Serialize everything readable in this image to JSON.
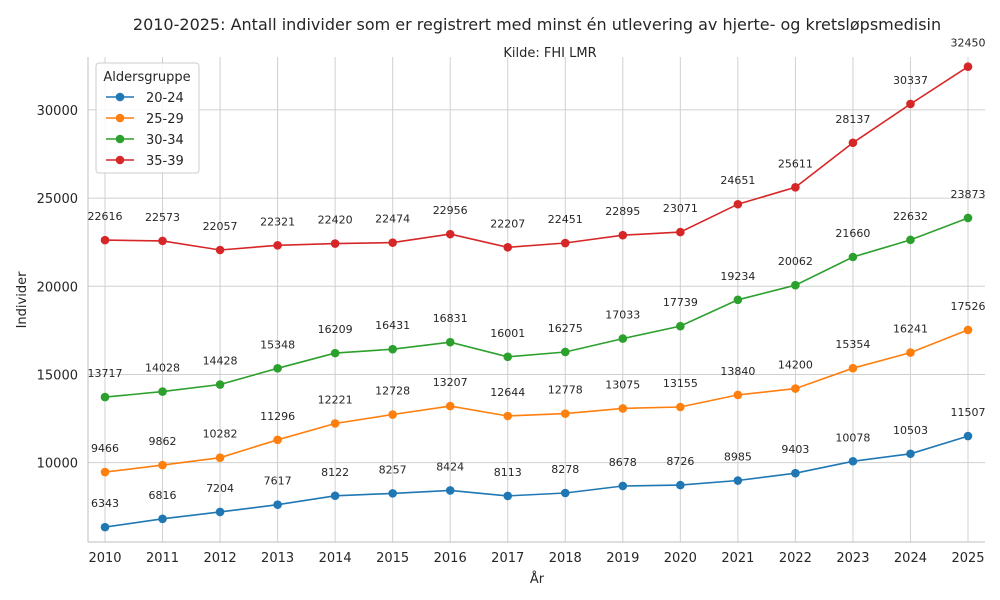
{
  "chart_data": {
    "type": "line",
    "title": "2010-2025: Antall individer som er registrert med minst én utlevering av hjerte- og kretsløpsmedisin",
    "subtitle": "Kilde: FHI LMR",
    "xlabel": "År",
    "ylabel": "Individer",
    "x": [
      2010,
      2011,
      2012,
      2013,
      2014,
      2015,
      2016,
      2017,
      2018,
      2019,
      2020,
      2021,
      2022,
      2023,
      2024,
      2025
    ],
    "ylim": [
      5500,
      33000
    ],
    "yticks": [
      10000,
      15000,
      20000,
      25000,
      30000
    ],
    "grid": true,
    "legend": {
      "title": "Aldersgruppe",
      "position": "top-left"
    },
    "series": [
      {
        "name": "20-24",
        "color": "#1f77b4",
        "values": [
          6343,
          6816,
          7204,
          7617,
          8122,
          8257,
          8424,
          8113,
          8278,
          8678,
          8726,
          8985,
          9403,
          10078,
          10503,
          11507
        ]
      },
      {
        "name": "25-29",
        "color": "#ff7f0e",
        "values": [
          9466,
          9862,
          10282,
          11296,
          12221,
          12728,
          13207,
          12644,
          12778,
          13075,
          13155,
          13840,
          14200,
          15354,
          16241,
          17526
        ]
      },
      {
        "name": "30-34",
        "color": "#2ca02c",
        "values": [
          13717,
          14028,
          14428,
          15348,
          16209,
          16431,
          16831,
          16001,
          16275,
          17033,
          17739,
          19234,
          20062,
          21660,
          22632,
          23873
        ]
      },
      {
        "name": "35-39",
        "color": "#d62728",
        "values": [
          22616,
          22573,
          22057,
          22321,
          22420,
          22474,
          22956,
          22207,
          22451,
          22895,
          23071,
          24651,
          25611,
          28137,
          30337,
          32450
        ]
      }
    ]
  }
}
